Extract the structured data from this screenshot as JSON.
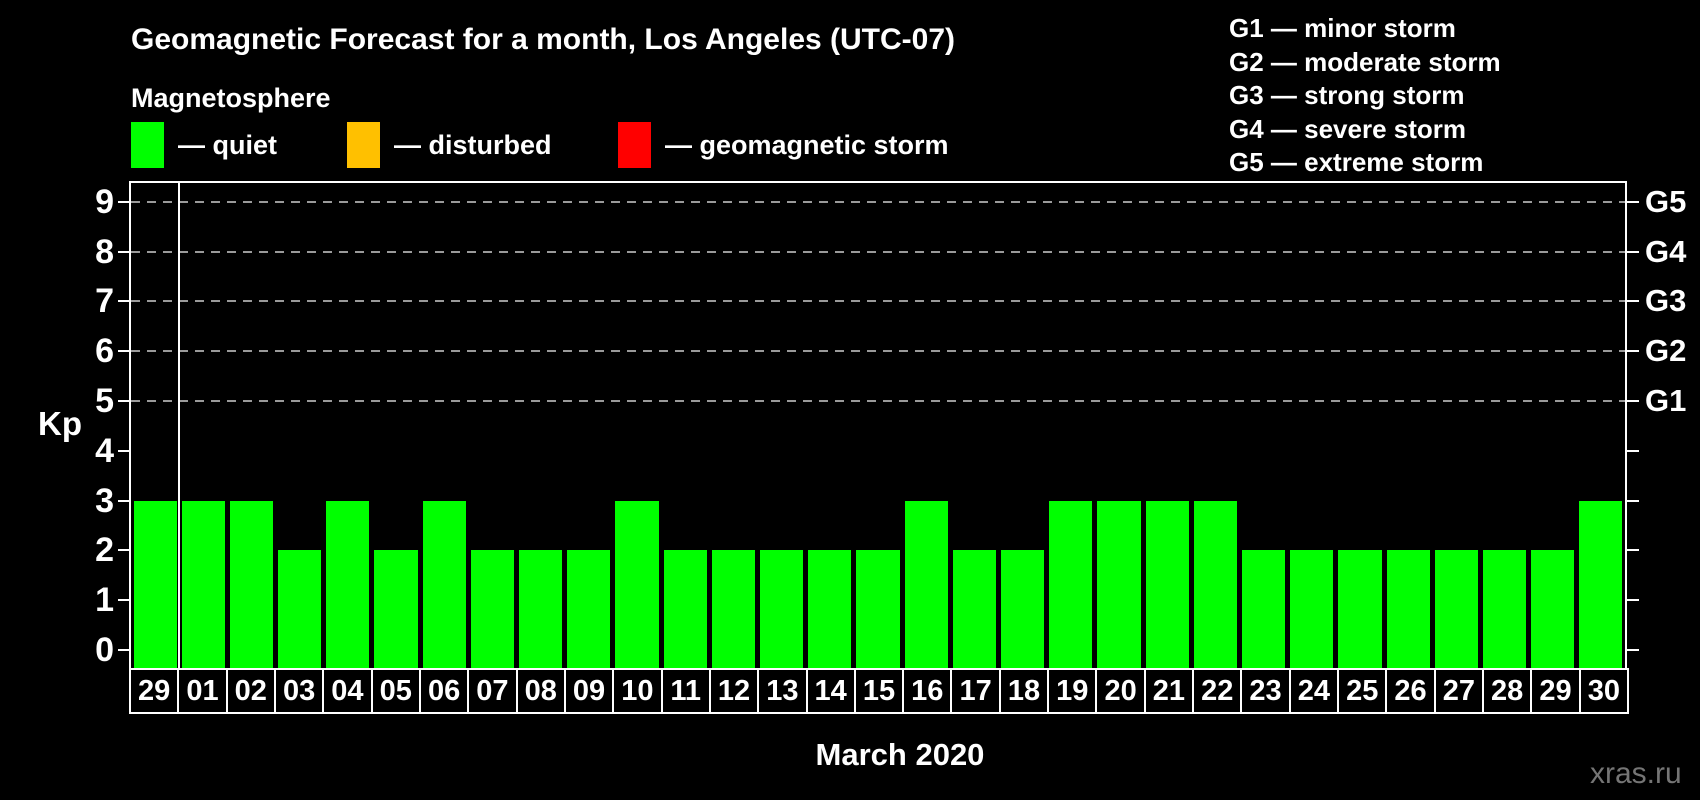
{
  "header": {
    "title": "Geomagnetic Forecast for a month, Los Angeles (UTC-07)",
    "subtitle": "Magnetosphere"
  },
  "legend": {
    "items": [
      {
        "id": "quiet",
        "label": "— quiet",
        "color": "#00ff00"
      },
      {
        "id": "disturbed",
        "label": "— disturbed",
        "color": "#ffc000"
      },
      {
        "id": "storm",
        "label": "— geomagnetic storm",
        "color": "#ff0000"
      }
    ]
  },
  "g_scale_legend": [
    "G1 — minor storm",
    "G2 — moderate storm",
    "G3 — strong storm",
    "G4 — severe storm",
    "G5 — extreme storm"
  ],
  "chart_data": {
    "type": "bar",
    "title": "Geomagnetic Forecast for a month, Los Angeles (UTC-07)",
    "xlabel": "March 2020",
    "ylabel": "Kp",
    "ylim": [
      0,
      9
    ],
    "y_ticks": [
      0,
      1,
      2,
      3,
      4,
      5,
      6,
      7,
      8,
      9
    ],
    "gridlines_at": [
      5,
      6,
      7,
      8,
      9
    ],
    "grid": true,
    "legend_position": "top",
    "right_axis": [
      {
        "kp": 5,
        "label": "G1"
      },
      {
        "kp": 6,
        "label": "G2"
      },
      {
        "kp": 7,
        "label": "G3"
      },
      {
        "kp": 8,
        "label": "G4"
      },
      {
        "kp": 9,
        "label": "G5"
      }
    ],
    "categories": [
      "29",
      "01",
      "02",
      "03",
      "04",
      "05",
      "06",
      "07",
      "08",
      "09",
      "10",
      "11",
      "12",
      "13",
      "14",
      "15",
      "16",
      "17",
      "18",
      "19",
      "20",
      "21",
      "22",
      "23",
      "24",
      "25",
      "26",
      "27",
      "28",
      "29",
      "30"
    ],
    "values": [
      3,
      3,
      3,
      2,
      3,
      2,
      3,
      2,
      2,
      2,
      3,
      2,
      2,
      2,
      2,
      2,
      3,
      2,
      2,
      3,
      3,
      3,
      3,
      2,
      2,
      2,
      2,
      2,
      2,
      2,
      3
    ],
    "bar_color": "#00ff00",
    "separator_after_index": 0
  },
  "colors": {
    "background": "#000000",
    "text": "#ffffff",
    "gridline": "#9a9a9a",
    "quiet": "#00ff00",
    "disturbed": "#ffc000",
    "storm": "#ff0000",
    "watermark": "#757575"
  },
  "footer": {
    "watermark": "xras.ru"
  }
}
